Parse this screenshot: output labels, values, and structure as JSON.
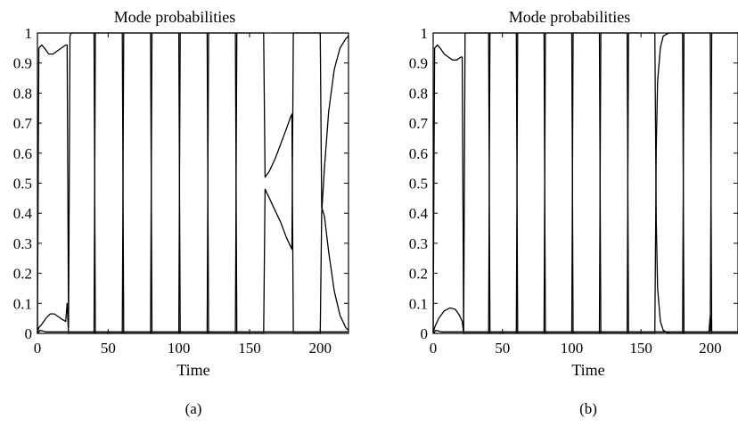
{
  "panels": [
    {
      "caption": "(a)",
      "chart_data": {
        "type": "line",
        "title": "Mode probabilities",
        "xlabel": "Time",
        "ylabel": "",
        "xlim": [
          0,
          220
        ],
        "ylim": [
          0,
          1
        ],
        "xticks": [
          0,
          50,
          100,
          150,
          200
        ],
        "yticks": [
          0,
          0.1,
          0.2,
          0.3,
          0.4,
          0.5,
          0.6,
          0.7,
          0.8,
          0.9,
          1
        ],
        "grid": false,
        "series": [
          {
            "values": [
              [
                0,
                0
              ],
              [
                1,
                0.95
              ],
              [
                3,
                0.96
              ],
              [
                5,
                0.95
              ],
              [
                8,
                0.93
              ],
              [
                11,
                0.93
              ],
              [
                14,
                0.94
              ],
              [
                17,
                0.95
              ],
              [
                20,
                0.96
              ],
              [
                21,
                0.96
              ],
              [
                22,
                0.02
              ],
              [
                23,
                0.99
              ],
              [
                24,
                1
              ],
              [
                40,
                1
              ],
              [
                41,
                0
              ],
              [
                60,
                0
              ],
              [
                61,
                1
              ],
              [
                80,
                1
              ],
              [
                81,
                0
              ],
              [
                100,
                0
              ],
              [
                101,
                1
              ],
              [
                120,
                1
              ],
              [
                121,
                0
              ],
              [
                140,
                0
              ],
              [
                141,
                1
              ],
              [
                160,
                1
              ],
              [
                161,
                0.52
              ],
              [
                164,
                0.54
              ],
              [
                168,
                0.58
              ],
              [
                172,
                0.63
              ],
              [
                176,
                0.68
              ],
              [
                179,
                0.72
              ],
              [
                180,
                0.73
              ],
              [
                181,
                0
              ],
              [
                200,
                0
              ],
              [
                201,
                0.4
              ],
              [
                203,
                0.55
              ],
              [
                206,
                0.74
              ],
              [
                210,
                0.88
              ],
              [
                214,
                0.95
              ],
              [
                218,
                0.98
              ],
              [
                220,
                0.99
              ]
            ]
          },
          {
            "values": [
              [
                0,
                0
              ],
              [
                1,
                0.02
              ],
              [
                3,
                0.03
              ],
              [
                6,
                0.05
              ],
              [
                9,
                0.065
              ],
              [
                12,
                0.065
              ],
              [
                15,
                0.055
              ],
              [
                18,
                0.045
              ],
              [
                20,
                0.04
              ],
              [
                21,
                0.1
              ],
              [
                22,
                0
              ],
              [
                40,
                0
              ],
              [
                41,
                1
              ],
              [
                60,
                1
              ],
              [
                61,
                0
              ],
              [
                80,
                0
              ],
              [
                81,
                1
              ],
              [
                100,
                1
              ],
              [
                101,
                0
              ],
              [
                120,
                0
              ],
              [
                121,
                1
              ],
              [
                140,
                1
              ],
              [
                141,
                0
              ],
              [
                160,
                0
              ],
              [
                161,
                0.48
              ],
              [
                164,
                0.45
              ],
              [
                168,
                0.41
              ],
              [
                172,
                0.37
              ],
              [
                176,
                0.32
              ],
              [
                179,
                0.29
              ],
              [
                180,
                0.28
              ],
              [
                181,
                1
              ],
              [
                200,
                1
              ],
              [
                201,
                0.42
              ],
              [
                203,
                0.39
              ],
              [
                206,
                0.27
              ],
              [
                210,
                0.14
              ],
              [
                214,
                0.06
              ],
              [
                218,
                0.02
              ],
              [
                220,
                0.01
              ]
            ]
          },
          {
            "values": [
              [
                0,
                0
              ],
              [
                2,
                0.01
              ],
              [
                6,
                0.005
              ],
              [
                21,
                0.005
              ],
              [
                22,
                0.005
              ],
              [
                220,
                0.005
              ]
            ]
          }
        ]
      }
    },
    {
      "caption": "(b)",
      "chart_data": {
        "type": "line",
        "title": "Mode probabilities",
        "xlabel": "Time",
        "ylabel": "",
        "xlim": [
          0,
          220
        ],
        "ylim": [
          0,
          1
        ],
        "xticks": [
          0,
          50,
          100,
          150,
          200
        ],
        "yticks": [
          0,
          0.1,
          0.2,
          0.3,
          0.4,
          0.5,
          0.6,
          0.7,
          0.8,
          0.9,
          1
        ],
        "grid": false,
        "series": [
          {
            "values": [
              [
                0,
                0
              ],
              [
                1,
                0.95
              ],
              [
                3,
                0.96
              ],
              [
                5,
                0.95
              ],
              [
                8,
                0.93
              ],
              [
                11,
                0.92
              ],
              [
                14,
                0.91
              ],
              [
                17,
                0.91
              ],
              [
                20,
                0.92
              ],
              [
                21,
                0.92
              ],
              [
                22,
                0
              ],
              [
                23,
                1
              ],
              [
                40,
                1
              ],
              [
                41,
                0
              ],
              [
                60,
                0
              ],
              [
                61,
                1
              ],
              [
                80,
                1
              ],
              [
                81,
                0
              ],
              [
                100,
                0
              ],
              [
                101,
                1
              ],
              [
                120,
                1
              ],
              [
                121,
                0
              ],
              [
                140,
                0
              ],
              [
                141,
                1
              ],
              [
                160,
                1
              ],
              [
                161,
                0.37
              ],
              [
                162,
                0.15
              ],
              [
                164,
                0.04
              ],
              [
                166,
                0.01
              ],
              [
                170,
                0
              ],
              [
                180,
                0
              ],
              [
                181,
                1
              ],
              [
                200,
                1
              ],
              [
                201,
                0
              ],
              [
                220,
                0
              ]
            ]
          },
          {
            "values": [
              [
                0,
                0
              ],
              [
                1,
                0.02
              ],
              [
                4,
                0.05
              ],
              [
                8,
                0.075
              ],
              [
                12,
                0.085
              ],
              [
                16,
                0.08
              ],
              [
                19,
                0.06
              ],
              [
                21,
                0.04
              ],
              [
                22,
                0
              ],
              [
                40,
                0
              ],
              [
                41,
                1
              ],
              [
                60,
                1
              ],
              [
                61,
                0
              ],
              [
                80,
                0
              ],
              [
                81,
                1
              ],
              [
                100,
                1
              ],
              [
                101,
                0
              ],
              [
                120,
                0
              ],
              [
                121,
                1
              ],
              [
                140,
                1
              ],
              [
                141,
                0
              ],
              [
                160,
                0
              ],
              [
                161,
                0.62
              ],
              [
                162,
                0.84
              ],
              [
                164,
                0.95
              ],
              [
                166,
                0.99
              ],
              [
                170,
                1
              ],
              [
                180,
                1
              ],
              [
                181,
                0
              ],
              [
                200,
                0
              ],
              [
                201,
                1
              ],
              [
                202,
                1
              ],
              [
                220,
                1
              ]
            ]
          },
          {
            "values": [
              [
                0,
                0
              ],
              [
                2,
                0.01
              ],
              [
                6,
                0.005
              ],
              [
                21,
                0.005
              ],
              [
                199,
                0.005
              ],
              [
                200,
                0.06
              ],
              [
                201,
                0.005
              ],
              [
                220,
                0.005
              ]
            ]
          }
        ]
      }
    }
  ]
}
